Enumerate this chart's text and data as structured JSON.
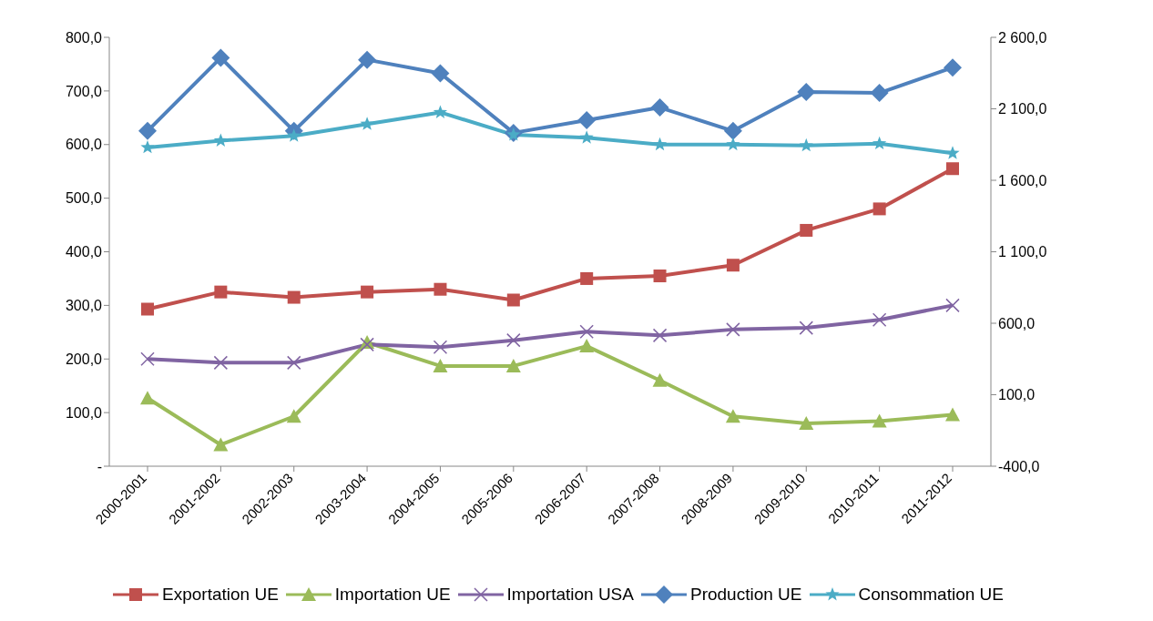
{
  "chart_data": {
    "type": "line",
    "categories": [
      "2000-2001",
      "2001-2002",
      "2002-2003",
      "2003-2004",
      "2004-2005",
      "2005-2006",
      "2006-2007",
      "2007-2008",
      "2008-2009",
      "2009-2010",
      "2010-2011",
      "2011-2012"
    ],
    "series": [
      {
        "name": "Exportation UE",
        "color": "#c0504d",
        "marker": "square",
        "values": [
          293,
          325,
          315,
          325,
          330,
          310,
          350,
          355,
          375,
          440,
          480,
          555
        ]
      },
      {
        "name": "Importation  UE",
        "color": "#9bbb59",
        "marker": "triangle",
        "values": [
          127,
          40,
          93,
          231,
          187,
          187,
          224,
          160,
          93,
          80,
          84,
          96
        ]
      },
      {
        "name": "Importation USA",
        "color": "#8064a2",
        "marker": "cross",
        "values": [
          200,
          193,
          193,
          227,
          222,
          235,
          251,
          244,
          255,
          258,
          273,
          300
        ]
      },
      {
        "name": "Production UE",
        "color": "#4f81bd",
        "marker": "diamond",
        "axis": "y2",
        "values": [
          1945,
          2457,
          1945,
          2443,
          2348,
          1932,
          2020,
          2109,
          1945,
          2218,
          2211,
          2389
        ]
      },
      {
        "name": "Consommation  UE",
        "color": "#4bacc6",
        "marker": "star",
        "axis": "y2",
        "values": [
          1830,
          1877,
          1911,
          1993,
          2075,
          1918,
          1898,
          1850,
          1850,
          1843,
          1857,
          1789
        ]
      }
    ],
    "ylim": [
      0,
      800
    ],
    "yticks": [
      {
        "value": 0,
        "label": "-"
      },
      {
        "value": 100,
        "label": "100,0"
      },
      {
        "value": 200,
        "label": "200,0"
      },
      {
        "value": 300,
        "label": "300,0"
      },
      {
        "value": 400,
        "label": "400,0"
      },
      {
        "value": 500,
        "label": "500,0"
      },
      {
        "value": 600,
        "label": "600,0"
      },
      {
        "value": 700,
        "label": "700,0"
      },
      {
        "value": 800,
        "label": "800,0"
      }
    ],
    "y2lim": [
      -400,
      2600
    ],
    "y2ticks": [
      {
        "value": -400,
        "label": "-400,0"
      },
      {
        "value": 100,
        "label": "100,0"
      },
      {
        "value": 600,
        "label": "600,0"
      },
      {
        "value": 1100,
        "label": "1 100,0"
      },
      {
        "value": 1600,
        "label": "1 600,0"
      },
      {
        "value": 2100,
        "label": "2 100,0"
      },
      {
        "value": 2600,
        "label": "2 600,0"
      }
    ],
    "grid": false,
    "legend": "bottom",
    "line_style": "solid"
  }
}
